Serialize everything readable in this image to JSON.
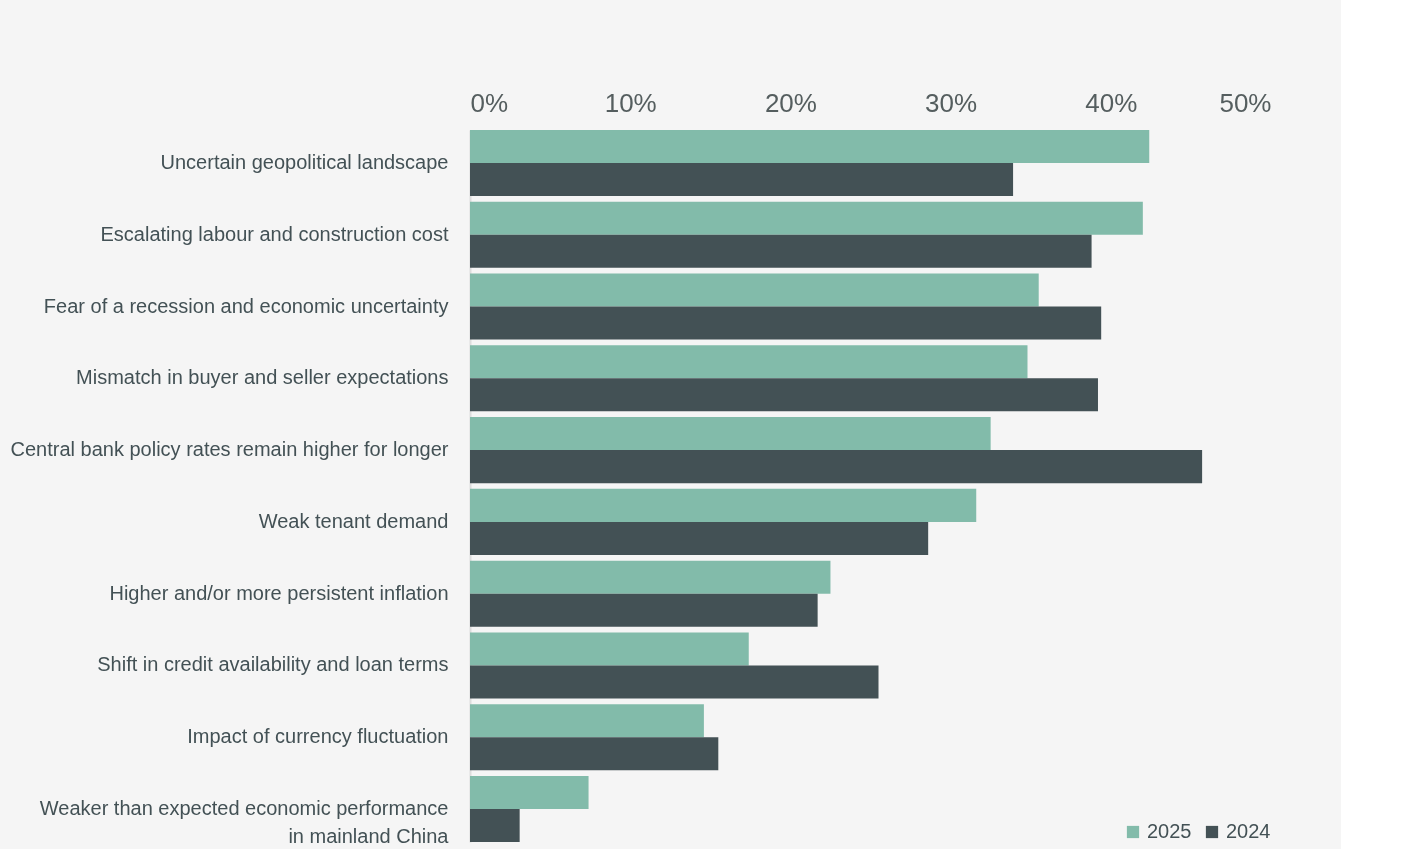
{
  "chart_data": {
    "type": "bar",
    "orientation": "horizontal",
    "categories": [
      "Uncertain geopolitical landscape",
      "Escalating labour and construction cost",
      "Fear of a recession and economic uncertainty",
      "Mismatch in buyer and seller expectations",
      "Central bank policy rates remain higher for longer",
      "Weak tenant demand",
      "Higher and/or more persistent inflation",
      "Shift in credit availability and loan terms",
      "Impact of currency fluctuation",
      "Weaker than expected economic performance\nin mainland China"
    ],
    "series": [
      {
        "name": "2025",
        "color": "#82bbaa",
        "values": [
          42.4,
          42.0,
          35.5,
          34.8,
          32.5,
          31.6,
          22.5,
          17.4,
          14.6,
          7.4
        ]
      },
      {
        "name": "2024",
        "color": "#435155",
        "values": [
          33.9,
          38.8,
          39.4,
          39.2,
          45.7,
          28.6,
          21.7,
          25.5,
          15.5,
          3.1
        ]
      }
    ],
    "xlim": [
      0,
      50
    ],
    "xticks": [
      {
        "value": 0,
        "label": "0%"
      },
      {
        "value": 10,
        "label": "10%"
      },
      {
        "value": 20,
        "label": "20%"
      },
      {
        "value": 30,
        "label": "30%"
      },
      {
        "value": 40,
        "label": "40%"
      },
      {
        "value": 50,
        "label": "50%"
      }
    ],
    "grid": false,
    "legend": "bottom right"
  }
}
